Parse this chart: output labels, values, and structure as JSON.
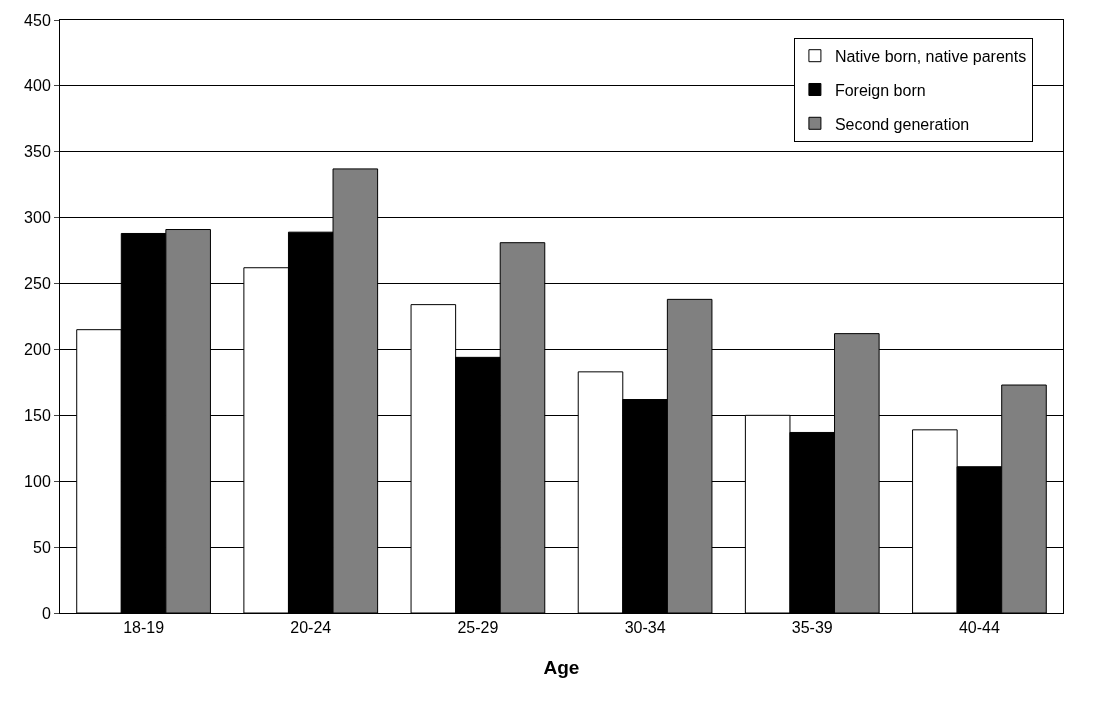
{
  "chart_data": {
    "type": "bar",
    "xlabel": "Age",
    "categories": [
      "18-19",
      "20-24",
      "25-29",
      "30-34",
      "35-39",
      "40-44"
    ],
    "series": [
      {
        "name": "Native born, native parents",
        "color": "#ffffff",
        "values": [
          215,
          262,
          234,
          183,
          150,
          139
        ]
      },
      {
        "name": "Foreign born",
        "color": "#000000",
        "values": [
          288,
          289,
          194,
          162,
          137,
          111
        ]
      },
      {
        "name": "Second generation",
        "color": "#808080",
        "values": [
          291,
          337,
          281,
          238,
          212,
          173
        ]
      }
    ],
    "ylim": [
      0,
      450
    ],
    "yticks": [
      0,
      50,
      100,
      150,
      200,
      250,
      300,
      350,
      400,
      450
    ],
    "grid": "y",
    "legend": "top right"
  }
}
